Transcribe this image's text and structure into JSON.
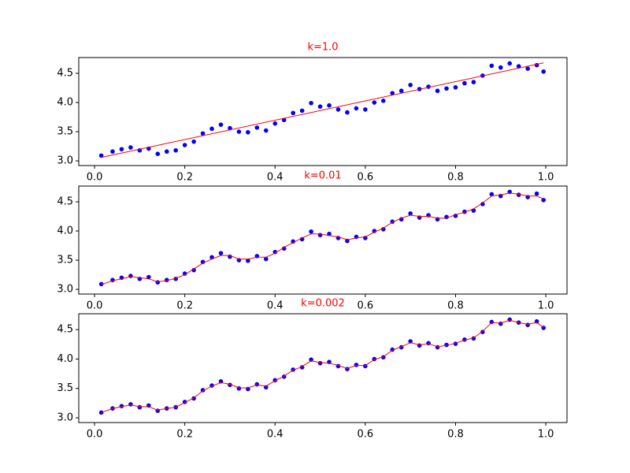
{
  "chart_data": [
    {
      "type": "scatter",
      "title": "k=1.0",
      "title_color": "red",
      "x": [
        0.015,
        0.04,
        0.06,
        0.08,
        0.1,
        0.12,
        0.14,
        0.16,
        0.18,
        0.2,
        0.22,
        0.24,
        0.26,
        0.28,
        0.3,
        0.32,
        0.34,
        0.36,
        0.38,
        0.4,
        0.42,
        0.44,
        0.46,
        0.48,
        0.5,
        0.52,
        0.54,
        0.56,
        0.58,
        0.6,
        0.62,
        0.64,
        0.66,
        0.68,
        0.7,
        0.72,
        0.74,
        0.76,
        0.78,
        0.8,
        0.82,
        0.84,
        0.86,
        0.88,
        0.9,
        0.92,
        0.94,
        0.96,
        0.98,
        0.995
      ],
      "series": [
        {
          "color": "blue",
          "values": [
            3.09,
            3.16,
            3.2,
            3.23,
            3.18,
            3.21,
            3.12,
            3.16,
            3.18,
            3.27,
            3.33,
            3.47,
            3.55,
            3.62,
            3.56,
            3.5,
            3.49,
            3.57,
            3.52,
            3.64,
            3.7,
            3.82,
            3.86,
            3.99,
            3.93,
            3.95,
            3.88,
            3.83,
            3.9,
            3.88,
            4.0,
            4.03,
            4.16,
            4.2,
            4.3,
            4.23,
            4.27,
            4.2,
            4.24,
            4.26,
            4.33,
            4.35,
            4.46,
            4.63,
            4.6,
            4.67,
            4.62,
            4.58,
            4.64,
            4.53
          ]
        }
      ],
      "fit": {
        "color": "red",
        "x": [
          0.015,
          0.995
        ],
        "values": [
          3.06,
          4.68
        ]
      },
      "xlim": [
        -0.035,
        1.047
      ],
      "ylim": [
        2.92,
        4.77
      ],
      "xticks": [
        {
          "value": 0,
          "label": "0.0"
        },
        0.2,
        0.4,
        0.6,
        0.8,
        {
          "value": 1,
          "label": "1.0"
        }
      ],
      "yticks": [
        {
          "value": 3,
          "label": "3.0"
        },
        3.5,
        {
          "value": 4,
          "label": "4.0"
        },
        4.5
      ]
    },
    {
      "type": "scatter",
      "title": "k=0.01",
      "title_color": "red",
      "x": [
        0.015,
        0.04,
        0.06,
        0.08,
        0.1,
        0.12,
        0.14,
        0.16,
        0.18,
        0.2,
        0.22,
        0.24,
        0.26,
        0.28,
        0.3,
        0.32,
        0.34,
        0.36,
        0.38,
        0.4,
        0.42,
        0.44,
        0.46,
        0.48,
        0.5,
        0.52,
        0.54,
        0.56,
        0.58,
        0.6,
        0.62,
        0.64,
        0.66,
        0.68,
        0.7,
        0.72,
        0.74,
        0.76,
        0.78,
        0.8,
        0.82,
        0.84,
        0.86,
        0.88,
        0.9,
        0.92,
        0.94,
        0.96,
        0.98,
        0.995
      ],
      "series": [
        {
          "color": "blue",
          "values": [
            3.09,
            3.16,
            3.2,
            3.23,
            3.18,
            3.21,
            3.12,
            3.16,
            3.18,
            3.27,
            3.33,
            3.47,
            3.55,
            3.62,
            3.56,
            3.5,
            3.49,
            3.57,
            3.52,
            3.64,
            3.7,
            3.82,
            3.86,
            3.99,
            3.93,
            3.95,
            3.88,
            3.83,
            3.9,
            3.88,
            4.0,
            4.03,
            4.16,
            4.2,
            4.3,
            4.23,
            4.27,
            4.2,
            4.24,
            4.26,
            4.33,
            4.35,
            4.46,
            4.63,
            4.6,
            4.67,
            4.62,
            4.58,
            4.64,
            4.53
          ]
        }
      ],
      "fit": {
        "color": "red",
        "x": [
          0.015,
          0.04,
          0.06,
          0.08,
          0.1,
          0.12,
          0.14,
          0.16,
          0.18,
          0.2,
          0.22,
          0.24,
          0.26,
          0.28,
          0.3,
          0.32,
          0.34,
          0.36,
          0.38,
          0.4,
          0.42,
          0.44,
          0.46,
          0.48,
          0.5,
          0.52,
          0.54,
          0.56,
          0.58,
          0.6,
          0.62,
          0.64,
          0.66,
          0.68,
          0.7,
          0.72,
          0.74,
          0.76,
          0.78,
          0.8,
          0.82,
          0.84,
          0.86,
          0.88,
          0.9,
          0.92,
          0.94,
          0.96,
          0.98,
          0.995
        ],
        "values": [
          3.08,
          3.15,
          3.18,
          3.22,
          3.2,
          3.18,
          3.13,
          3.15,
          3.19,
          3.25,
          3.35,
          3.45,
          3.52,
          3.58,
          3.58,
          3.52,
          3.52,
          3.55,
          3.55,
          3.62,
          3.72,
          3.8,
          3.88,
          3.95,
          3.95,
          3.92,
          3.9,
          3.85,
          3.88,
          3.9,
          3.98,
          4.05,
          4.15,
          4.22,
          4.27,
          4.25,
          4.25,
          4.22,
          4.22,
          4.28,
          4.32,
          4.38,
          4.48,
          4.6,
          4.62,
          4.65,
          4.63,
          4.6,
          4.6,
          4.55
        ]
      },
      "xlim": [
        -0.035,
        1.047
      ],
      "ylim": [
        2.92,
        4.77
      ],
      "xticks": [
        {
          "value": 0,
          "label": "0.0"
        },
        0.2,
        0.4,
        0.6,
        0.8,
        {
          "value": 1,
          "label": "1.0"
        }
      ],
      "yticks": [
        {
          "value": 3,
          "label": "3.0"
        },
        3.5,
        {
          "value": 4,
          "label": "4.0"
        },
        4.5
      ]
    },
    {
      "type": "scatter",
      "title": "k=0.002",
      "title_color": "red",
      "x": [
        0.015,
        0.04,
        0.06,
        0.08,
        0.1,
        0.12,
        0.14,
        0.16,
        0.18,
        0.2,
        0.22,
        0.24,
        0.26,
        0.28,
        0.3,
        0.32,
        0.34,
        0.36,
        0.38,
        0.4,
        0.42,
        0.44,
        0.46,
        0.48,
        0.5,
        0.52,
        0.54,
        0.56,
        0.58,
        0.6,
        0.62,
        0.64,
        0.66,
        0.68,
        0.7,
        0.72,
        0.74,
        0.76,
        0.78,
        0.8,
        0.82,
        0.84,
        0.86,
        0.88,
        0.9,
        0.92,
        0.94,
        0.96,
        0.98,
        0.995
      ],
      "series": [
        {
          "color": "blue",
          "values": [
            3.09,
            3.16,
            3.2,
            3.23,
            3.18,
            3.21,
            3.12,
            3.16,
            3.18,
            3.27,
            3.33,
            3.47,
            3.55,
            3.62,
            3.56,
            3.5,
            3.49,
            3.57,
            3.52,
            3.64,
            3.7,
            3.82,
            3.86,
            3.99,
            3.93,
            3.95,
            3.88,
            3.83,
            3.9,
            3.88,
            4.0,
            4.03,
            4.16,
            4.2,
            4.3,
            4.23,
            4.27,
            4.2,
            4.24,
            4.26,
            4.33,
            4.35,
            4.46,
            4.63,
            4.6,
            4.67,
            4.62,
            4.58,
            4.64,
            4.53
          ]
        }
      ],
      "fit": {
        "color": "red",
        "x": [
          0.015,
          0.04,
          0.06,
          0.08,
          0.1,
          0.12,
          0.14,
          0.16,
          0.18,
          0.2,
          0.22,
          0.24,
          0.26,
          0.28,
          0.3,
          0.32,
          0.34,
          0.36,
          0.38,
          0.4,
          0.42,
          0.44,
          0.46,
          0.48,
          0.5,
          0.52,
          0.54,
          0.56,
          0.58,
          0.6,
          0.62,
          0.64,
          0.66,
          0.68,
          0.7,
          0.72,
          0.74,
          0.76,
          0.78,
          0.8,
          0.82,
          0.84,
          0.86,
          0.88,
          0.9,
          0.92,
          0.94,
          0.96,
          0.98,
          0.995
        ],
        "values": [
          3.09,
          3.16,
          3.19,
          3.22,
          3.19,
          3.19,
          3.13,
          3.16,
          3.18,
          3.26,
          3.34,
          3.46,
          3.54,
          3.6,
          3.57,
          3.51,
          3.51,
          3.56,
          3.54,
          3.63,
          3.71,
          3.81,
          3.87,
          3.97,
          3.94,
          3.93,
          3.89,
          3.84,
          3.89,
          3.89,
          3.99,
          4.04,
          4.15,
          4.21,
          4.28,
          4.24,
          4.26,
          4.21,
          4.23,
          4.27,
          4.32,
          4.36,
          4.47,
          4.62,
          4.61,
          4.66,
          4.62,
          4.59,
          4.62,
          4.54
        ]
      },
      "xlim": [
        -0.035,
        1.047
      ],
      "ylim": [
        2.92,
        4.77
      ],
      "xticks": [
        {
          "value": 0,
          "label": "0.0"
        },
        0.2,
        0.4,
        0.6,
        0.8,
        {
          "value": 1,
          "label": "1.0"
        }
      ],
      "yticks": [
        {
          "value": 3,
          "label": "3.0"
        },
        3.5,
        {
          "value": 4,
          "label": "4.0"
        },
        4.5
      ]
    }
  ]
}
